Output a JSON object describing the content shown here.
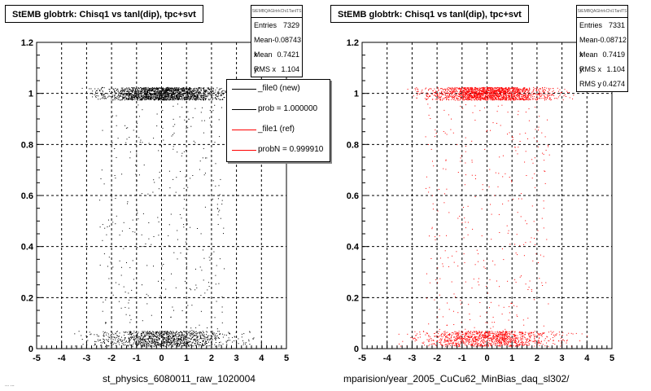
{
  "chart_data": [
    {
      "type": "scatter",
      "title": "StEMB globtrk: Chisq1 vs tanl(dip), tpc+svt",
      "stats": {
        "header": "StEMBQAGlrtrkChi1TanlTS",
        "rows": [
          {
            "label": "Entries",
            "value": "7329"
          },
          {
            "label": "Mean x",
            "value": "-0.08743"
          },
          {
            "label": "Mean y",
            "value": "0.7421"
          },
          {
            "label": "RMS x",
            "value": "1.104"
          }
        ]
      },
      "xlim": [
        -5,
        5
      ],
      "ylim": [
        0,
        1.2
      ],
      "xticks": [
        "-5",
        "-4",
        "-3",
        "-2",
        "-1",
        "0",
        "1",
        "2",
        "3",
        "4",
        "5"
      ],
      "yticks": [
        "0",
        "0.2",
        "0.4",
        "0.6",
        "0.8",
        "1",
        "1.2"
      ],
      "grid": true,
      "xlabel": "st_physics_6080011_raw_1020004",
      "color": "#000000",
      "bands": [
        {
          "y_center": 1.0,
          "y_halfwidth": 0.025,
          "x_min": -2.6,
          "x_max": 2.8,
          "weight": 0.55
        },
        {
          "y_center": 0.04,
          "y_halfwidth": 0.03,
          "x_min": -3.0,
          "x_max": 3.2,
          "weight": 0.35
        }
      ],
      "sparse_fraction": 0.1,
      "sparse_x_range": [
        -2.5,
        2.5
      ]
    },
    {
      "type": "scatter",
      "title": "StEMB globtrk: Chisq1 vs tanl(dip), tpc+svt",
      "stats": {
        "header": "StEMBQAGlrtrkChi1TanlTS",
        "rows": [
          {
            "label": "Entries",
            "value": "7331"
          },
          {
            "label": "Mean x",
            "value": "-0.08712"
          },
          {
            "label": "Mean y",
            "value": "0.7419"
          },
          {
            "label": "RMS x",
            "value": "1.104"
          },
          {
            "label": "RMS y",
            "value": "0.4274"
          }
        ]
      },
      "xlim": [
        -5,
        5
      ],
      "ylim": [
        0,
        1.2
      ],
      "xticks": [
        "-5",
        "-4",
        "-3",
        "-2",
        "-1",
        "0",
        "1",
        "2",
        "3",
        "4",
        "5"
      ],
      "yticks": [
        "0",
        "0.2",
        "0.4",
        "0.6",
        "0.8",
        "1",
        "1.2"
      ],
      "grid": true,
      "xlabel": "mparision/year_2005_CuCu62_MinBias_daq_sl302/",
      "color": "#ff0000",
      "bands": [
        {
          "y_center": 1.0,
          "y_halfwidth": 0.025,
          "x_min": -2.6,
          "x_max": 2.8,
          "weight": 0.55
        },
        {
          "y_center": 0.04,
          "y_halfwidth": 0.03,
          "x_min": -3.0,
          "x_max": 3.2,
          "weight": 0.35
        }
      ],
      "sparse_fraction": 0.1,
      "sparse_x_range": [
        -2.5,
        2.5
      ]
    }
  ],
  "legend": {
    "entries": [
      {
        "label": "_file0 (new)",
        "color": "#000000"
      },
      {
        "label": "prob = 1.000000",
        "color": "#000000"
      },
      {
        "label": "_file1 (ref)",
        "color": "#ff0000"
      },
      {
        "label": "probN = 0.999910",
        "color": "#ff0000"
      }
    ]
  },
  "corner_note": "... ..."
}
